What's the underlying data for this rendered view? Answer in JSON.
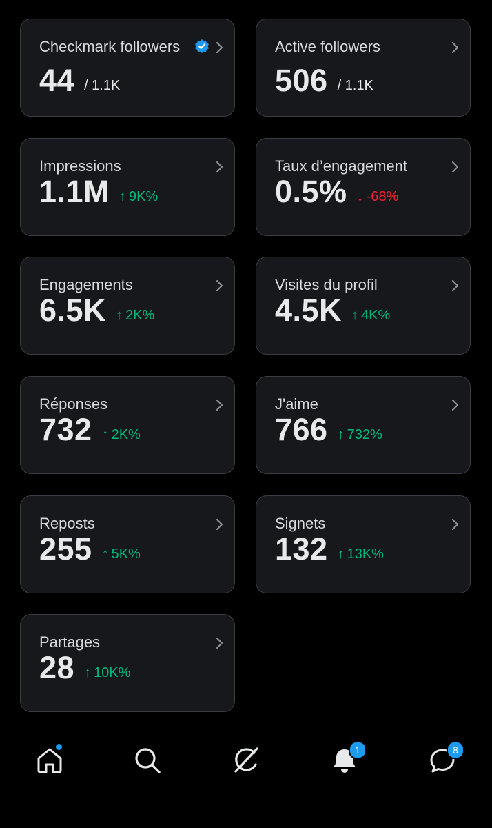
{
  "cards": [
    {
      "label": "Checkmark followers",
      "value": "44",
      "sub": "/ 1.1K",
      "verified": true
    },
    {
      "label": "Active followers",
      "value": "506",
      "sub": "/ 1.1K"
    },
    {
      "label": "Impressions",
      "value": "1.1M",
      "delta": "9K%",
      "dir": "up"
    },
    {
      "label": "Taux d’engagement",
      "value": "0.5%",
      "delta": "-68%",
      "dir": "down"
    },
    {
      "label": "Engagements",
      "value": "6.5K",
      "delta": "2K%",
      "dir": "up"
    },
    {
      "label": "Visites du profil",
      "value": "4.5K",
      "delta": "4K%",
      "dir": "up"
    },
    {
      "label": "Réponses",
      "value": "732",
      "delta": "2K%",
      "dir": "up"
    },
    {
      "label": "J'aime",
      "value": "766",
      "delta": "732%",
      "dir": "up"
    },
    {
      "label": "Reposts",
      "value": "255",
      "delta": "5K%",
      "dir": "up"
    },
    {
      "label": "Signets",
      "value": "132",
      "delta": "13K%",
      "dir": "up"
    },
    {
      "label": "Partages",
      "value": "28",
      "delta": "10K%",
      "dir": "up"
    }
  ],
  "nav": {
    "items": [
      "home-icon",
      "search-icon",
      "grok-icon",
      "notifications-icon",
      "messages-icon"
    ],
    "notifications_badge": "1",
    "messages_badge": "8"
  },
  "colors": {
    "up": "#00ba7c",
    "down": "#f4212e",
    "accent": "#1d9bf0",
    "card_bg": "#16181c"
  }
}
